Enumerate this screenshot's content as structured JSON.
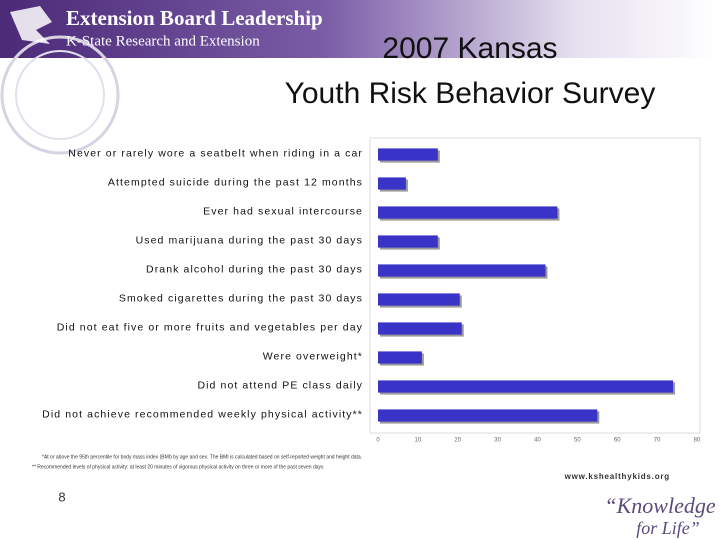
{
  "header": {
    "line1": "Extension Board Leadership",
    "line2": "K-State Research and Extension"
  },
  "slide_title": [
    "2007 Kansas",
    "Youth Risk Behavior Survey"
  ],
  "chart_data": {
    "type": "hbar",
    "categories": [
      "Never or rarely wore a seatbelt when riding in a car",
      "Attempted suicide during the past 12 months",
      "Ever had sexual intercourse",
      "Used marijuana during the past 30 days",
      "Drank alcohol during the past 30 days",
      "Smoked cigarettes during the past 30 days",
      "Did not eat five or more fruits and vegetables per day",
      "Were overweight*",
      "Did not attend PE class daily",
      "Did not achieve recommended weekly physical activity**"
    ],
    "values": [
      15,
      7,
      45,
      15,
      42,
      20.5,
      21,
      11,
      74,
      55
    ],
    "color": "#3a33c8",
    "xlim": [
      0,
      80
    ],
    "xticks": [
      0,
      10,
      20,
      30,
      40,
      50,
      60,
      70,
      80
    ],
    "grid": false
  },
  "footnotes": [
    "*At or above the 95th percentile for body mass index (BMI) by age and sex. The BMI is calculated based on self-reported weight and height data.",
    "** Recommended levels of physical activity: at least 20 minutes of vigorous physical activity on three or more of the past seven days"
  ],
  "url": "www.kshealthykids.org",
  "page_number": "8",
  "logo": [
    "“Knowledge",
    "for Life”"
  ]
}
